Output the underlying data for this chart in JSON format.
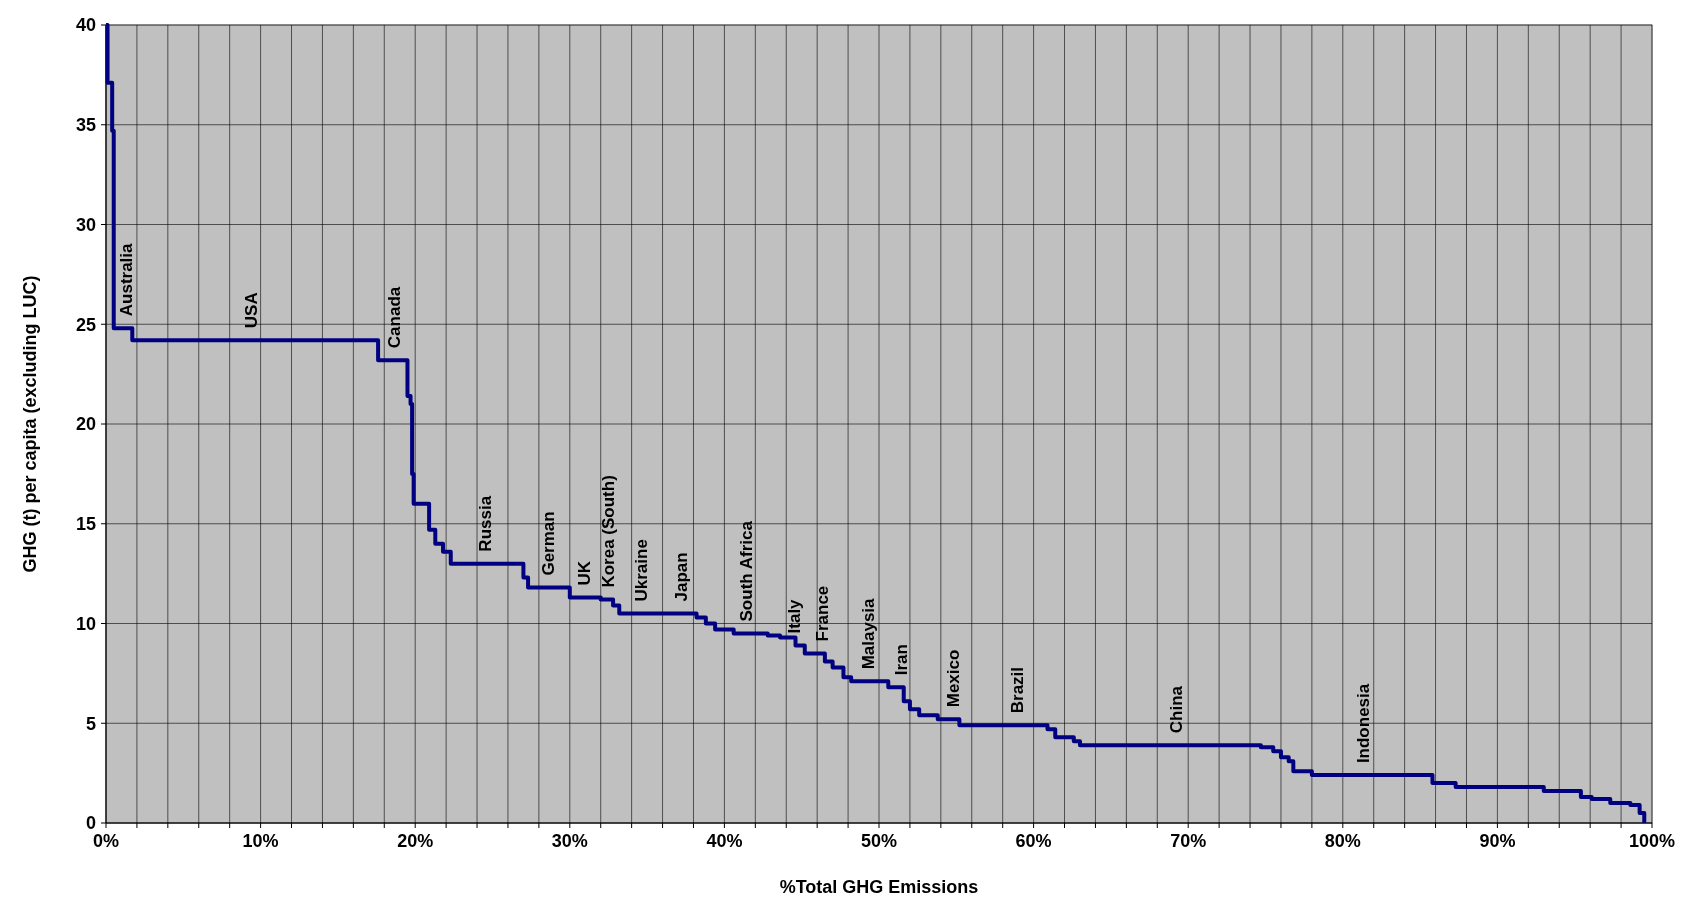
{
  "chart_data": {
    "type": "step",
    "xlabel": "%Total GHG Emissions",
    "ylabel": "GHG (t) per capita (excluding LUC)",
    "xlim": [
      0,
      100
    ],
    "ylim": [
      0,
      40
    ],
    "xticks": [
      {
        "value": 0,
        "label": "0%"
      },
      {
        "value": 2,
        "label": null
      },
      {
        "value": 4,
        "label": null
      },
      {
        "value": 6,
        "label": null
      },
      {
        "value": 8,
        "label": null
      },
      {
        "value": 10,
        "label": "10%"
      },
      {
        "value": 12,
        "label": null
      },
      {
        "value": 14,
        "label": null
      },
      {
        "value": 16,
        "label": null
      },
      {
        "value": 18,
        "label": null
      },
      {
        "value": 20,
        "label": "20%"
      },
      {
        "value": 22,
        "label": null
      },
      {
        "value": 24,
        "label": null
      },
      {
        "value": 26,
        "label": null
      },
      {
        "value": 28,
        "label": null
      },
      {
        "value": 30,
        "label": "30%"
      },
      {
        "value": 32,
        "label": null
      },
      {
        "value": 34,
        "label": null
      },
      {
        "value": 36,
        "label": null
      },
      {
        "value": 38,
        "label": null
      },
      {
        "value": 40,
        "label": "40%"
      },
      {
        "value": 42,
        "label": null
      },
      {
        "value": 44,
        "label": null
      },
      {
        "value": 46,
        "label": null
      },
      {
        "value": 48,
        "label": null
      },
      {
        "value": 50,
        "label": "50%"
      },
      {
        "value": 52,
        "label": null
      },
      {
        "value": 54,
        "label": null
      },
      {
        "value": 56,
        "label": null
      },
      {
        "value": 58,
        "label": null
      },
      {
        "value": 60,
        "label": "60%"
      },
      {
        "value": 62,
        "label": null
      },
      {
        "value": 64,
        "label": null
      },
      {
        "value": 66,
        "label": null
      },
      {
        "value": 68,
        "label": null
      },
      {
        "value": 70,
        "label": "70%"
      },
      {
        "value": 72,
        "label": null
      },
      {
        "value": 74,
        "label": null
      },
      {
        "value": 76,
        "label": null
      },
      {
        "value": 78,
        "label": null
      },
      {
        "value": 80,
        "label": "80%"
      },
      {
        "value": 82,
        "label": null
      },
      {
        "value": 84,
        "label": null
      },
      {
        "value": 86,
        "label": null
      },
      {
        "value": 88,
        "label": null
      },
      {
        "value": 90,
        "label": "90%"
      },
      {
        "value": 92,
        "label": null
      },
      {
        "value": 94,
        "label": null
      },
      {
        "value": 96,
        "label": null
      },
      {
        "value": 98,
        "label": null
      },
      {
        "value": 100,
        "label": "100%"
      }
    ],
    "yticks": [
      0,
      5,
      10,
      15,
      20,
      25,
      30,
      35,
      40
    ],
    "grid": true,
    "line_style": "solid",
    "marker": "none",
    "series": [
      {
        "color": "#000080",
        "x": [
          0,
          0.1,
          0.4,
          0.5,
          1.7,
          17.6,
          19.5,
          19.7,
          19.8,
          19.9,
          20.9,
          21.3,
          21.8,
          22.3,
          27,
          27.3,
          30,
          32,
          32.8,
          33.2,
          38.2,
          38.8,
          39.4,
          40.6,
          42.8,
          43.6,
          44.6,
          45.2,
          46.5,
          47,
          47.7,
          48.2,
          50.6,
          51.6,
          52,
          52.6,
          53.8,
          55.2,
          60.9,
          61.4,
          62.6,
          63,
          74.7,
          75.5,
          76,
          76.5,
          76.8,
          78,
          85.8,
          87.3,
          93,
          95.4,
          96.1,
          97.3,
          98.6,
          99.2,
          99.5
        ],
        "values": [
          40,
          37.1,
          34.7,
          24.8,
          24.2,
          23.2,
          21.4,
          21,
          17.5,
          16,
          14.7,
          14,
          13.6,
          13,
          12.3,
          11.8,
          11.3,
          11.2,
          10.9,
          10.5,
          10.3,
          10,
          9.7,
          9.5,
          9.4,
          9.3,
          8.9,
          8.5,
          8.1,
          7.8,
          7.3,
          7.1,
          6.8,
          6.1,
          5.7,
          5.4,
          5.2,
          4.9,
          4.7,
          4.3,
          4.1,
          3.9,
          3.8,
          3.6,
          3.3,
          3.1,
          2.6,
          2.4,
          2,
          1.8,
          1.6,
          1.3,
          1.2,
          1,
          0.9,
          0.5,
          0
        ]
      }
    ],
    "annotations": [
      {
        "text": "Australia",
        "x": 1.4,
        "y": 24.8
      },
      {
        "text": "USA",
        "x": 9.5,
        "y": 24.2
      },
      {
        "text": "Canada",
        "x": 18.7,
        "y": 23.2
      },
      {
        "text": "Russia",
        "x": 24.6,
        "y": 13
      },
      {
        "text": "German",
        "x": 28.7,
        "y": 11.8
      },
      {
        "text": "UK",
        "x": 31,
        "y": 11.3
      },
      {
        "text": "Korea (South)",
        "x": 32.6,
        "y": 11.2
      },
      {
        "text": "Ukraine",
        "x": 34.7,
        "y": 10.5
      },
      {
        "text": "Japan",
        "x": 37.3,
        "y": 10.5
      },
      {
        "text": "South Africa",
        "x": 41.5,
        "y": 9.5
      },
      {
        "text": "Italy",
        "x": 44.6,
        "y": 8.9
      },
      {
        "text": "France",
        "x": 46.4,
        "y": 8.5
      },
      {
        "text": "Malaysia",
        "x": 49.4,
        "y": 7.1
      },
      {
        "text": "Iran",
        "x": 51.5,
        "y": 6.8
      },
      {
        "text": "Mexico",
        "x": 54.9,
        "y": 5.2
      },
      {
        "text": "Brazil",
        "x": 59,
        "y": 4.9
      },
      {
        "text": "China",
        "x": 69.3,
        "y": 3.9
      },
      {
        "text": "Indonesia",
        "x": 81.4,
        "y": 2.4
      }
    ]
  }
}
